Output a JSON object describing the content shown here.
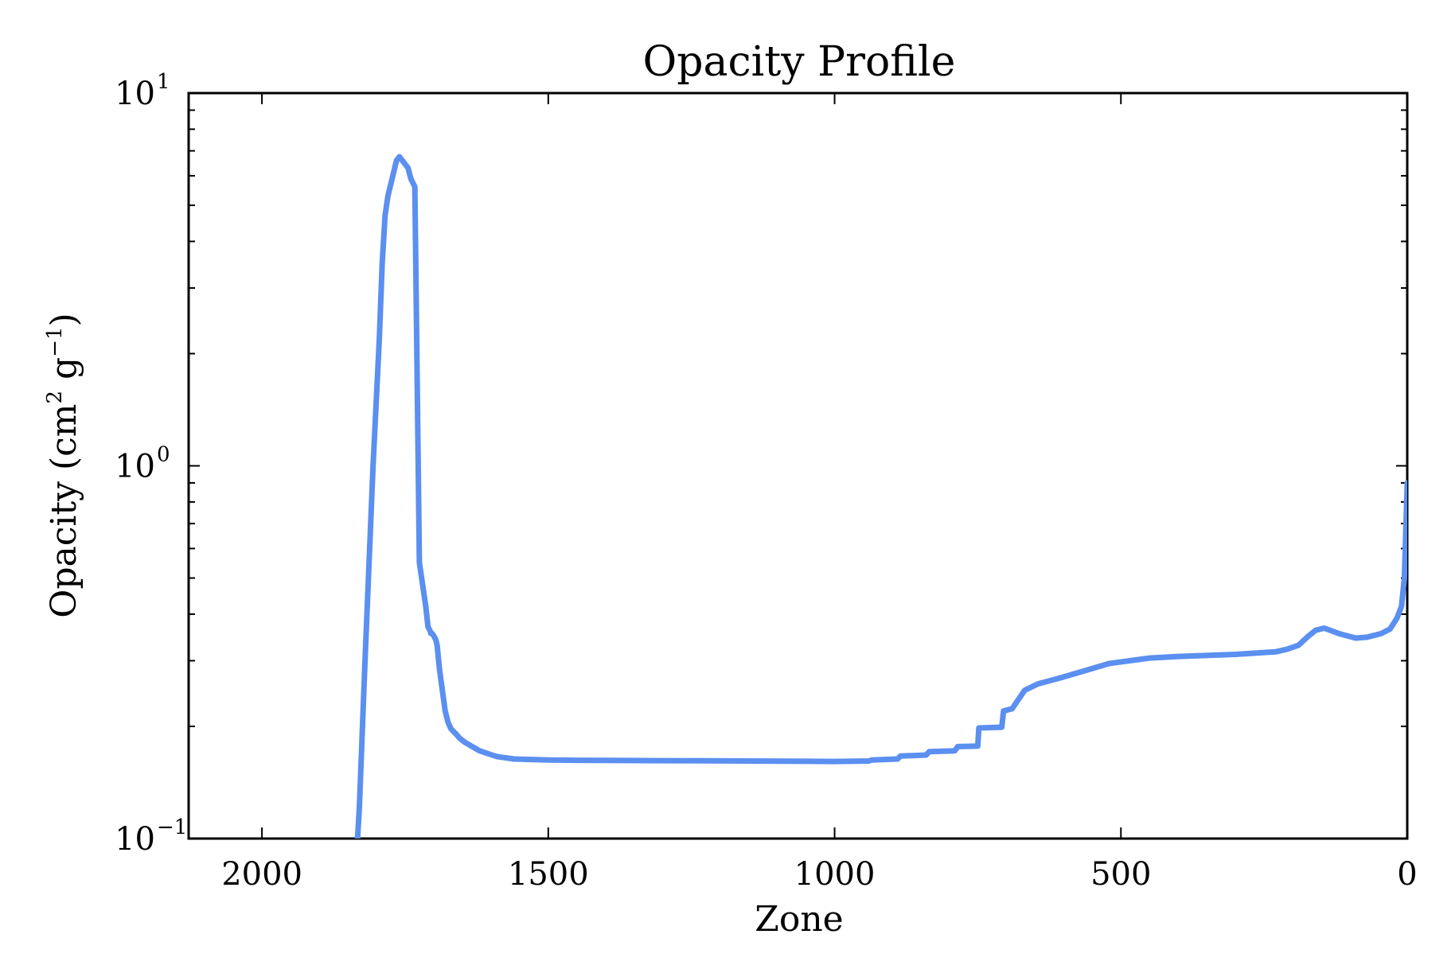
{
  "chart_data": {
    "type": "line",
    "title": "Opacity Profile",
    "xlabel": "Zone",
    "ylabel": "Opacity (cm",
    "ylabel_sup1": "2",
    "ylabel_mid": " g",
    "ylabel_sup2": "−1",
    "ylabel_end": ")",
    "xlim": [
      2128,
      0
    ],
    "ylim": [
      0.1,
      10
    ],
    "yscale": "log",
    "x_ticks": [
      2000,
      1500,
      1000,
      500,
      0
    ],
    "x_tick_labels": [
      "2000",
      "1500",
      "1000",
      "500",
      "0"
    ],
    "y_ticks": [
      {
        "value": 10,
        "base": "10",
        "exp": "1"
      },
      {
        "value": 1,
        "base": "10",
        "exp": "0"
      },
      {
        "value": 0.1,
        "base": "10",
        "exp": "−1"
      }
    ],
    "line_color": "#5b8ff0",
    "series": [
      {
        "name": "opacity",
        "x": [
          1833,
          1830,
          1820,
          1806,
          1795,
          1790,
          1785,
          1780,
          1775,
          1765,
          1760,
          1745,
          1740,
          1733,
          1725,
          1714,
          1710,
          1706,
          1705,
          1703,
          1700,
          1698,
          1696,
          1694,
          1690,
          1680,
          1675,
          1670,
          1660,
          1655,
          1645,
          1620,
          1590,
          1560,
          1530,
          1500,
          1450,
          1300,
          1150,
          1000,
          940,
          935,
          890,
          885,
          840,
          835,
          790,
          785,
          750,
          748,
          708,
          705,
          690,
          680,
          668,
          645,
          605,
          570,
          520,
          450,
          400,
          300,
          230,
          210,
          190,
          172,
          160,
          145,
          120,
          90,
          70,
          45,
          30,
          18,
          10,
          5,
          0
        ],
        "y": [
          0.1,
          0.12,
          0.3,
          1.0,
          2.2,
          3.5,
          4.7,
          5.3,
          5.7,
          6.6,
          6.75,
          6.3,
          5.9,
          5.6,
          0.55,
          0.42,
          0.37,
          0.36,
          0.355,
          0.355,
          0.35,
          0.345,
          0.34,
          0.33,
          0.285,
          0.22,
          0.205,
          0.197,
          0.19,
          0.186,
          0.181,
          0.172,
          0.166,
          0.1635,
          0.163,
          0.1625,
          0.1622,
          0.1618,
          0.1615,
          0.161,
          0.1615,
          0.1625,
          0.1635,
          0.1665,
          0.1675,
          0.171,
          0.172,
          0.1765,
          0.177,
          0.198,
          0.199,
          0.22,
          0.223,
          0.235,
          0.25,
          0.26,
          0.27,
          0.28,
          0.295,
          0.305,
          0.308,
          0.312,
          0.317,
          0.322,
          0.33,
          0.35,
          0.362,
          0.367,
          0.355,
          0.345,
          0.347,
          0.355,
          0.365,
          0.39,
          0.42,
          0.5,
          0.9
        ]
      }
    ]
  }
}
